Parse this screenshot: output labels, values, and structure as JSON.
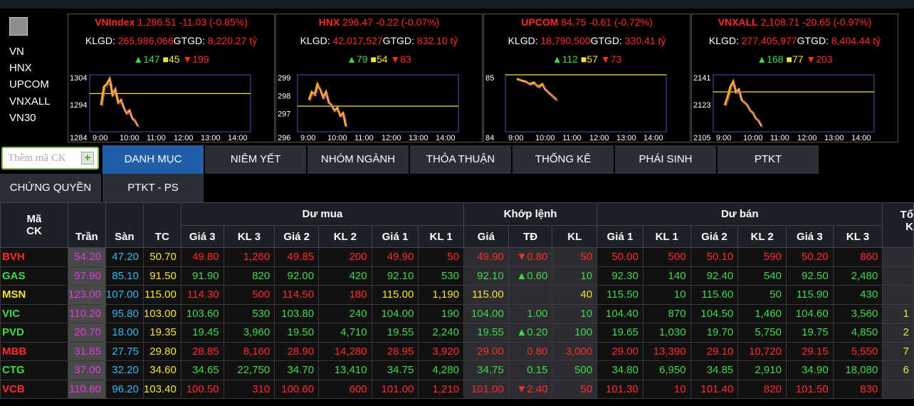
{
  "left_menu": {
    "items": [
      "VN",
      "HNX",
      "UPCOM",
      "VNXALL",
      "VN30"
    ]
  },
  "indices": [
    {
      "name": "VNIndex",
      "value": "1,286.51",
      "change": "-11.03",
      "pct": "(-0.85%)",
      "klgd_label": "KLGD:",
      "klgd": "265,986,066",
      "gtgd_label": "GTGD:",
      "gtgd": "8,220.27 tỷ",
      "up": "147",
      "ref": "45",
      "down": "199",
      "y_ticks": [
        "1304",
        "1294",
        "1284"
      ],
      "x_ticks": [
        "9:00",
        "10:00",
        "11:00",
        "12:00",
        "13:00",
        "14:00"
      ]
    },
    {
      "name": "HNX",
      "value": "296.47",
      "change": "-0.22",
      "pct": "(-0.07%)",
      "klgd_label": "KLGD:",
      "klgd": "42,017,527",
      "gtgd_label": "GTGD:",
      "gtgd": "832.10 tỷ",
      "up": "79",
      "ref": "54",
      "down": "83",
      "y_ticks": [
        "299",
        "298",
        "297",
        "296"
      ],
      "x_ticks": [
        "9:00",
        "10:00",
        "11:00",
        "12:00",
        "13:00",
        "14:00"
      ]
    },
    {
      "name": "UPCOM",
      "value": "84.75",
      "change": "-0.61",
      "pct": "(-0.72%)",
      "klgd_label": "KLGD:",
      "klgd": "18,790,500",
      "gtgd_label": "GTGD:",
      "gtgd": "330.41 tỷ",
      "up": "112",
      "ref": "57",
      "down": "73",
      "y_ticks": [
        "85",
        "84"
      ],
      "x_ticks": [
        "9:00",
        "10:00",
        "11:00",
        "12:00",
        "13:00",
        "14:00"
      ]
    },
    {
      "name": "VNXALL",
      "value": "2,108.71",
      "change": "-20.65",
      "pct": "(-0.97%)",
      "klgd_label": "KLGD:",
      "klgd": "277,405,977",
      "gtgd_label": "GTGD:",
      "gtgd": "8,404.44 tỷ",
      "up": "168",
      "ref": "77",
      "down": "203",
      "y_ticks": [
        "2141",
        "2123",
        "2105"
      ],
      "x_ticks": [
        "9:00",
        "10:00",
        "11:00",
        "12:00",
        "13:00",
        "14:00"
      ]
    }
  ],
  "add_box": {
    "placeholder": "Thêm mã CK",
    "plus": "+"
  },
  "tabs_row1": [
    "DANH MỤC",
    "NIÊM YẾT",
    "NHÓM NGÀNH",
    "THỎA THUẬN",
    "THỐNG KÊ",
    "PHÁI SINH",
    "PTKT"
  ],
  "tabs_row2": [
    "CHỨNG QUYỀN",
    "PTKT - PS"
  ],
  "table": {
    "h_ma": "Mã",
    "h_ck": "CK",
    "h_tran": "Trần",
    "h_san": "Sàn",
    "h_tc": "TC",
    "h_du_mua": "Dư mua",
    "h_khop": "Khớp lệnh",
    "h_du_ban": "Dư bán",
    "h_tong": "Tổ",
    "h_tong2": "K",
    "sub": [
      "Giá 3",
      "KL 3",
      "Giá 2",
      "KL 2",
      "Giá 1",
      "KL 1",
      "Giá",
      "TĐ",
      "KL",
      "Giá 1",
      "KL 1",
      "Giá 2",
      "KL 2",
      "Giá 3",
      "KL 3"
    ],
    "rows": [
      {
        "sym": "BVH",
        "symc": "down",
        "tran": "54.20",
        "san": "47.20",
        "tc": "50.70",
        "b3": "49.80",
        "bk3": "1,260",
        "b2": "49.85",
        "bk2": "200",
        "b1": "49.90",
        "bk1": "50",
        "bc": "down",
        "p": "49.90",
        "td": "▼0.80",
        "kl": "50",
        "mc": "down",
        "s1": "50.00",
        "sk1": "500",
        "s2": "50.10",
        "sk2": "590",
        "s3": "50.20",
        "sk3": "860",
        "sc": "down",
        "tot": ""
      },
      {
        "sym": "GAS",
        "symc": "up",
        "tran": "97.90",
        "san": "85.10",
        "tc": "91.50",
        "b3": "91.90",
        "bk3": "820",
        "b2": "92.00",
        "bk2": "420",
        "b1": "92.10",
        "bk1": "530",
        "bc": "up",
        "p": "92.10",
        "td": "▲0.60",
        "kl": "10",
        "mc": "up",
        "s1": "92.30",
        "sk1": "140",
        "s2": "92.40",
        "sk2": "540",
        "s3": "92.50",
        "sk3": "2,480",
        "sc": "up",
        "tot": ""
      },
      {
        "sym": "MSN",
        "symc": "ref",
        "tran": "123.00",
        "san": "107.00",
        "tc": "115.00",
        "b3": "114.30",
        "bk3": "500",
        "b2": "114.50",
        "bk2": "180",
        "b1": "115.00",
        "bk1": "1,190",
        "bc": "mixed",
        "p": "115.00",
        "td": "",
        "kl": "40",
        "mc": "ref",
        "s1": "115.50",
        "sk1": "10",
        "s2": "115.60",
        "sk2": "50",
        "s3": "115.90",
        "sk3": "430",
        "sc": "up",
        "tot": ""
      },
      {
        "sym": "VIC",
        "symc": "up",
        "tran": "110.20",
        "san": "95.80",
        "tc": "103.00",
        "b3": "103.60",
        "bk3": "530",
        "b2": "103.80",
        "bk2": "240",
        "b1": "104.00",
        "bk1": "190",
        "bc": "up",
        "p": "104.00",
        "td": "1.00",
        "kl": "10",
        "mc": "up",
        "s1": "104.40",
        "sk1": "870",
        "s2": "104.50",
        "sk2": "1,460",
        "s3": "104.60",
        "sk3": "3,560",
        "sc": "up",
        "tot": "1"
      },
      {
        "sym": "PVD",
        "symc": "up",
        "tran": "20.70",
        "san": "18.00",
        "tc": "19.35",
        "b3": "19.45",
        "bk3": "3,960",
        "b2": "19.50",
        "bk2": "4,710",
        "b1": "19.55",
        "bk1": "2,240",
        "bc": "up",
        "p": "19.55",
        "td": "▲0.20",
        "kl": "100",
        "mc": "up",
        "s1": "19.65",
        "sk1": "1,030",
        "s2": "19.70",
        "sk2": "5,750",
        "s3": "19.75",
        "sk3": "4,850",
        "sc": "up",
        "tot": "2"
      },
      {
        "sym": "MBB",
        "symc": "down",
        "tran": "31.85",
        "san": "27.75",
        "tc": "29.80",
        "b3": "28.85",
        "bk3": "8,160",
        "b2": "28.90",
        "bk2": "14,280",
        "b1": "28.95",
        "bk1": "3,920",
        "bc": "down",
        "p": "29.00",
        "td": "0.80",
        "kl": "3,000",
        "mc": "down",
        "s1": "29.00",
        "sk1": "13,390",
        "s2": "29.10",
        "sk2": "10,720",
        "s3": "29.15",
        "sk3": "5,550",
        "sc": "down",
        "tot": "7"
      },
      {
        "sym": "CTG",
        "symc": "up",
        "tran": "37.00",
        "san": "32.20",
        "tc": "34.60",
        "b3": "34.65",
        "bk3": "22,750",
        "b2": "34.70",
        "bk2": "13,410",
        "b1": "34.75",
        "bk1": "4,280",
        "bc": "up",
        "p": "34.75",
        "td": "0.15",
        "kl": "500",
        "mc": "up",
        "s1": "34.80",
        "sk1": "6,950",
        "s2": "34.85",
        "sk2": "2,910",
        "s3": "34.90",
        "sk3": "18,080",
        "sc": "up",
        "tot": "6"
      },
      {
        "sym": "VCB",
        "symc": "down",
        "tran": "110.60",
        "san": "96.20",
        "tc": "103.40",
        "b3": "100.50",
        "bk3": "310",
        "b2": "100.60",
        "bk2": "600",
        "b1": "101.00",
        "bk1": "1,210",
        "bc": "down",
        "p": "101.00",
        "td": "▼2.40",
        "kl": "50",
        "mc": "down",
        "s1": "101.30",
        "sk1": "10",
        "s2": "101.40",
        "sk2": "820",
        "s3": "101.50",
        "sk3": "830",
        "sc": "down",
        "tot": ""
      }
    ]
  },
  "colors": {
    "up": "#3fd94a",
    "down": "#ff2b2b",
    "ref": "#f2e533",
    "ceil": "#e03be0",
    "floor": "#36b8f0",
    "active_tab": "#1e5fa8"
  }
}
